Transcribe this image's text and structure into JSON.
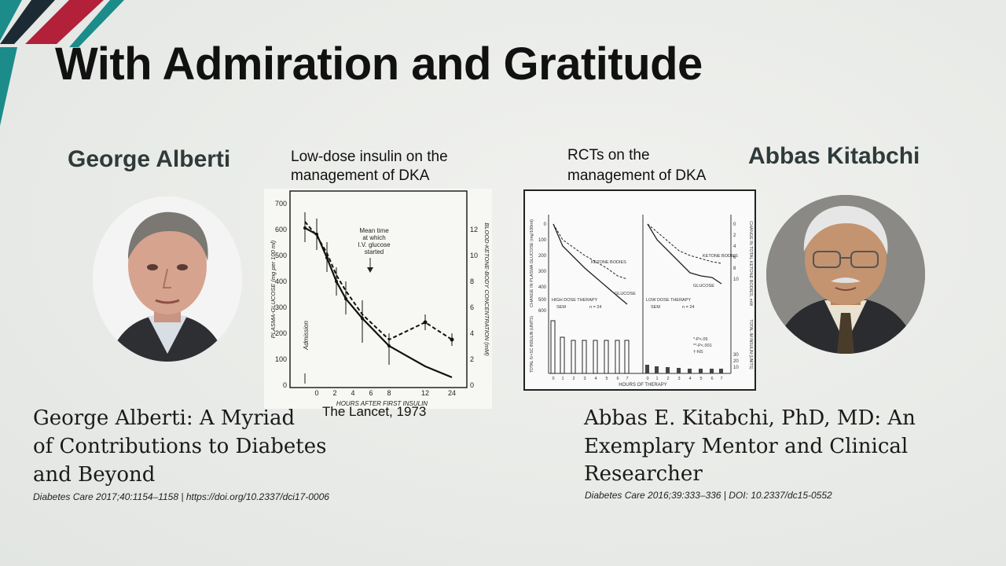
{
  "slide": {
    "title": "With Admiration and Gratitude"
  },
  "left_person": {
    "name": "George Alberti",
    "publication_title_line1": "George Alberti: A Myriad",
    "publication_title_line2": "of Contributions to Diabetes",
    "publication_title_line3": "and Beyond",
    "publication_citation": "Diabetes Care 2017;40:1154–1158 | https://doi.org/10.2337/dci17-0006"
  },
  "right_person": {
    "name": "Abbas Kitabchi",
    "publication_title_line1": "Abbas E. Kitabchi, PhD, MD: An",
    "publication_title_line2": "Exemplary Mentor and Clinical",
    "publication_title_line3": "Researcher",
    "publication_citation": "Diabetes Care 2016;39:333–336 | DOI: 10.2337/dc15-0552"
  },
  "left_chart": {
    "caption_line1": "Low-dose insulin on the",
    "caption_line2": "management of DKA",
    "source": "The Lancet, 1973",
    "y_left_label": "PLASMA-GLUCOSE (mg per 100 ml)",
    "y_right_label": "BLOOD-KETONE-BODY CONCENTRATION (mM)",
    "x_label": "HOURS AFTER FIRST INSULIN",
    "annotation_line1": "Mean time",
    "annotation_line2": "at which",
    "annotation_line3": "I.V. glucose",
    "annotation_line4": "started",
    "admission_label": "Admission",
    "y_left_ticks": [
      "700",
      "600",
      "500",
      "400",
      "300",
      "200",
      "100",
      "0"
    ],
    "y_right_ticks": [
      "12",
      "10",
      "8",
      "6",
      "4",
      "2",
      "0"
    ],
    "x_ticks": [
      "0",
      "2",
      "4",
      "6",
      "8",
      "12",
      "24"
    ]
  },
  "right_chart": {
    "caption_line1": "RCTs on the",
    "caption_line2": "management of DKA",
    "y_left_label": "CHANGE IN PLASMA GLUCOSE (mg/100ml)",
    "y_right_label": "CHANGE IN TOTAL KETONE BODIES, mM",
    "y_left_bottom_label": "TOTAL IV+SC INSULIN (UNITS)",
    "y_right_bottom_label": "TOTAL IM INSULIN (UNITS)",
    "x_label": "HOURS OF THERAPY",
    "left_panel_label": "HIGH DOSE THERAPY",
    "right_panel_label": "LOW DOSE THERAPY",
    "sem_label": "SEM",
    "n_label": "n = 24",
    "ketone_label": "KETONE BODIES",
    "glucose_label": "GLUCOSE",
    "legend_1": "*-P<.05",
    "legend_2": "**-P<.001",
    "legend_3": "†-NS",
    "y_left_ticks": [
      "0",
      "100",
      "200",
      "300",
      "400",
      "500",
      "600"
    ],
    "y_right_ticks": [
      "0",
      "2",
      "4",
      "6",
      "8",
      "10"
    ],
    "bar_ticks": [
      "30",
      "20",
      "10"
    ],
    "x_ticks": [
      "0",
      "1",
      "2",
      "3",
      "4",
      "5",
      "6",
      "7"
    ]
  },
  "colors": {
    "accent_teal": "#1b8c8a",
    "accent_red": "#b2203a",
    "accent_dark": "#1c2a33"
  }
}
